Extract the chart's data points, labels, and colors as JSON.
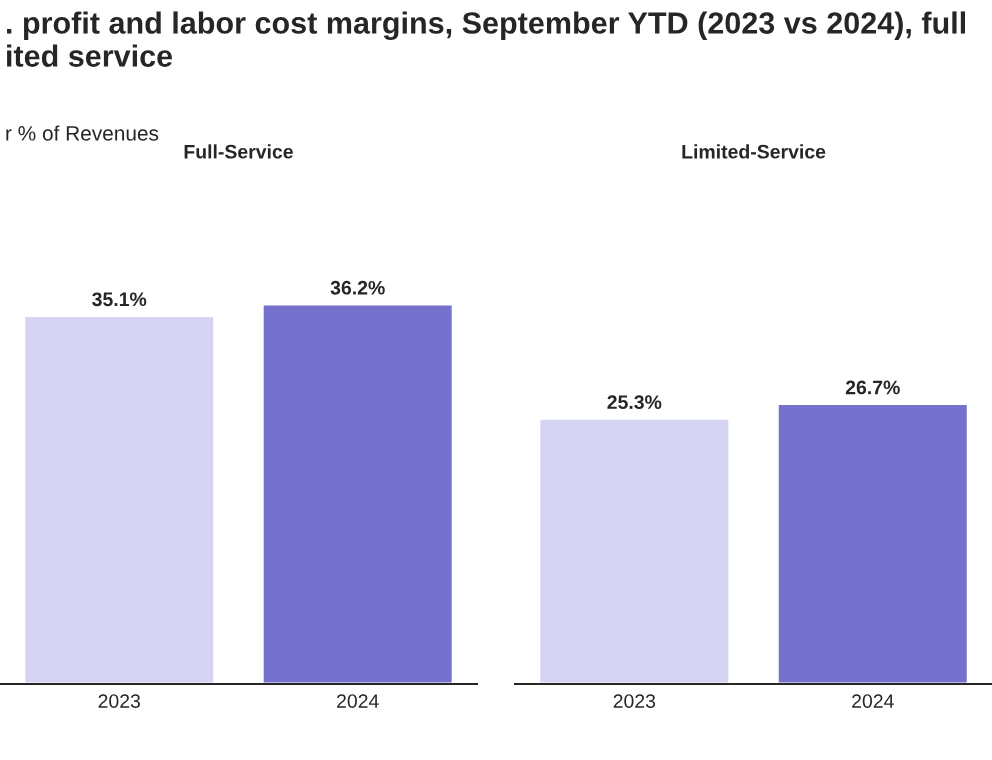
{
  "chart_data": [
    {
      "type": "bar",
      "title": "Full-Service",
      "categories": [
        "2023",
        "2024"
      ],
      "values": [
        35.1,
        36.2
      ],
      "colors": [
        "#d5d4f2",
        "#7572cd"
      ],
      "data_labels": true,
      "value_labels": [
        "35.1%",
        "36.2%"
      ],
      "relative": false,
      "annotations": [
        ". profit and labor cost margins, September YTD (2023 vs 2024), full\nited service",
        "r % of Revenues"
      ]
    },
    {
      "type": "bar",
      "title": "Limited-Service",
      "categories": [
        "2023",
        "2024"
      ],
      "values": [
        25.3,
        26.7
      ],
      "colors": [
        "#d5d4f2",
        "#7572cd"
      ],
      "data_labels": true,
      "value_labels": [
        "25.3%",
        "26.7%"
      ],
      "relative": false
    }
  ]
}
